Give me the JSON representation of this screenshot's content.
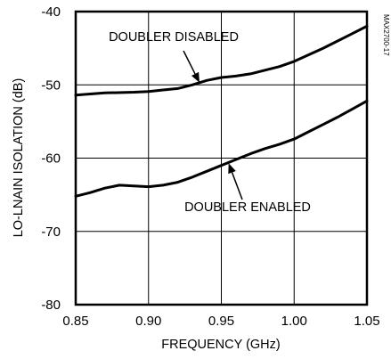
{
  "chart_data": {
    "type": "line",
    "title": "",
    "figure_id": "MAX2700-17",
    "xlabel": "FREQUENCY (GHz)",
    "ylabel": "LO-LNAIN ISOLATION (dB)",
    "xlim": [
      0.85,
      1.05
    ],
    "ylim": [
      -80,
      -40
    ],
    "grid": true,
    "x_ticks": [
      0.85,
      0.9,
      0.95,
      1.0,
      1.05
    ],
    "x_tick_labels": [
      "0.85",
      "0.90",
      "0.95",
      "1.00",
      "1.05"
    ],
    "y_ticks": [
      -40,
      -50,
      -60,
      -70,
      -80
    ],
    "y_tick_labels": [
      "-40",
      "-50",
      "-60",
      "-70",
      "-80"
    ],
    "series": [
      {
        "name": "DOUBLER DISABLED",
        "x": [
          0.85,
          0.87,
          0.89,
          0.9,
          0.91,
          0.92,
          0.93,
          0.94,
          0.95,
          0.96,
          0.97,
          0.98,
          0.99,
          1.0,
          1.01,
          1.02,
          1.03,
          1.04,
          1.05
        ],
        "y": [
          -51.4,
          -51.1,
          -51.0,
          -50.9,
          -50.7,
          -50.5,
          -50.0,
          -49.4,
          -49.0,
          -48.8,
          -48.5,
          -48.0,
          -47.5,
          -46.8,
          -45.9,
          -45.0,
          -44.0,
          -43.0,
          -42.0
        ]
      },
      {
        "name": "DOUBLER ENABLED",
        "x": [
          0.85,
          0.86,
          0.87,
          0.88,
          0.89,
          0.9,
          0.91,
          0.92,
          0.93,
          0.94,
          0.95,
          0.96,
          0.97,
          0.98,
          0.99,
          1.0,
          1.01,
          1.02,
          1.03,
          1.04,
          1.05
        ],
        "y": [
          -65.2,
          -64.7,
          -64.1,
          -63.7,
          -63.8,
          -63.9,
          -63.7,
          -63.3,
          -62.6,
          -61.8,
          -61.0,
          -60.2,
          -59.4,
          -58.7,
          -58.1,
          -57.4,
          -56.4,
          -55.4,
          -54.4,
          -53.3,
          -52.2
        ]
      }
    ],
    "annotations": [
      {
        "text": "DOUBLER DISABLED",
        "target": [
          0.935,
          -49.7
        ]
      },
      {
        "text": "DOUBLER ENABLED",
        "target": [
          0.955,
          -60.7
        ]
      }
    ]
  }
}
